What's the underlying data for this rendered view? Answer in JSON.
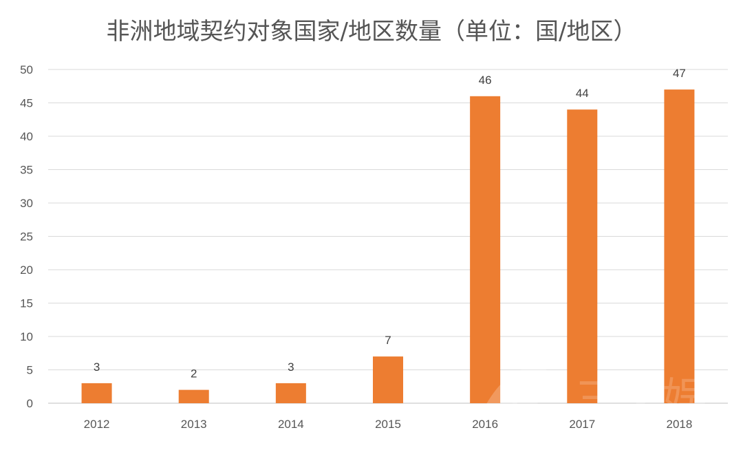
{
  "chart_data": {
    "type": "bar",
    "title": "非洲地域契约对象国家/地区数量（单位：国/地区）",
    "categories": [
      "2012",
      "2013",
      "2014",
      "2015",
      "2016",
      "2017",
      "2018"
    ],
    "series": [
      {
        "values": [
          3,
          2,
          3,
          7,
          46,
          44,
          47
        ],
        "color": "#ed7d31"
      }
    ],
    "data_labels": [
      "3",
      "2",
      "3",
      "7",
      "46",
      "44",
      "47"
    ],
    "ylim": [
      0,
      50
    ],
    "yticks": [
      0,
      5,
      10,
      15,
      20,
      25,
      30,
      35,
      40,
      45,
      50
    ],
    "grid": true,
    "legend": "none"
  },
  "watermark": {
    "text": "三文娱"
  }
}
